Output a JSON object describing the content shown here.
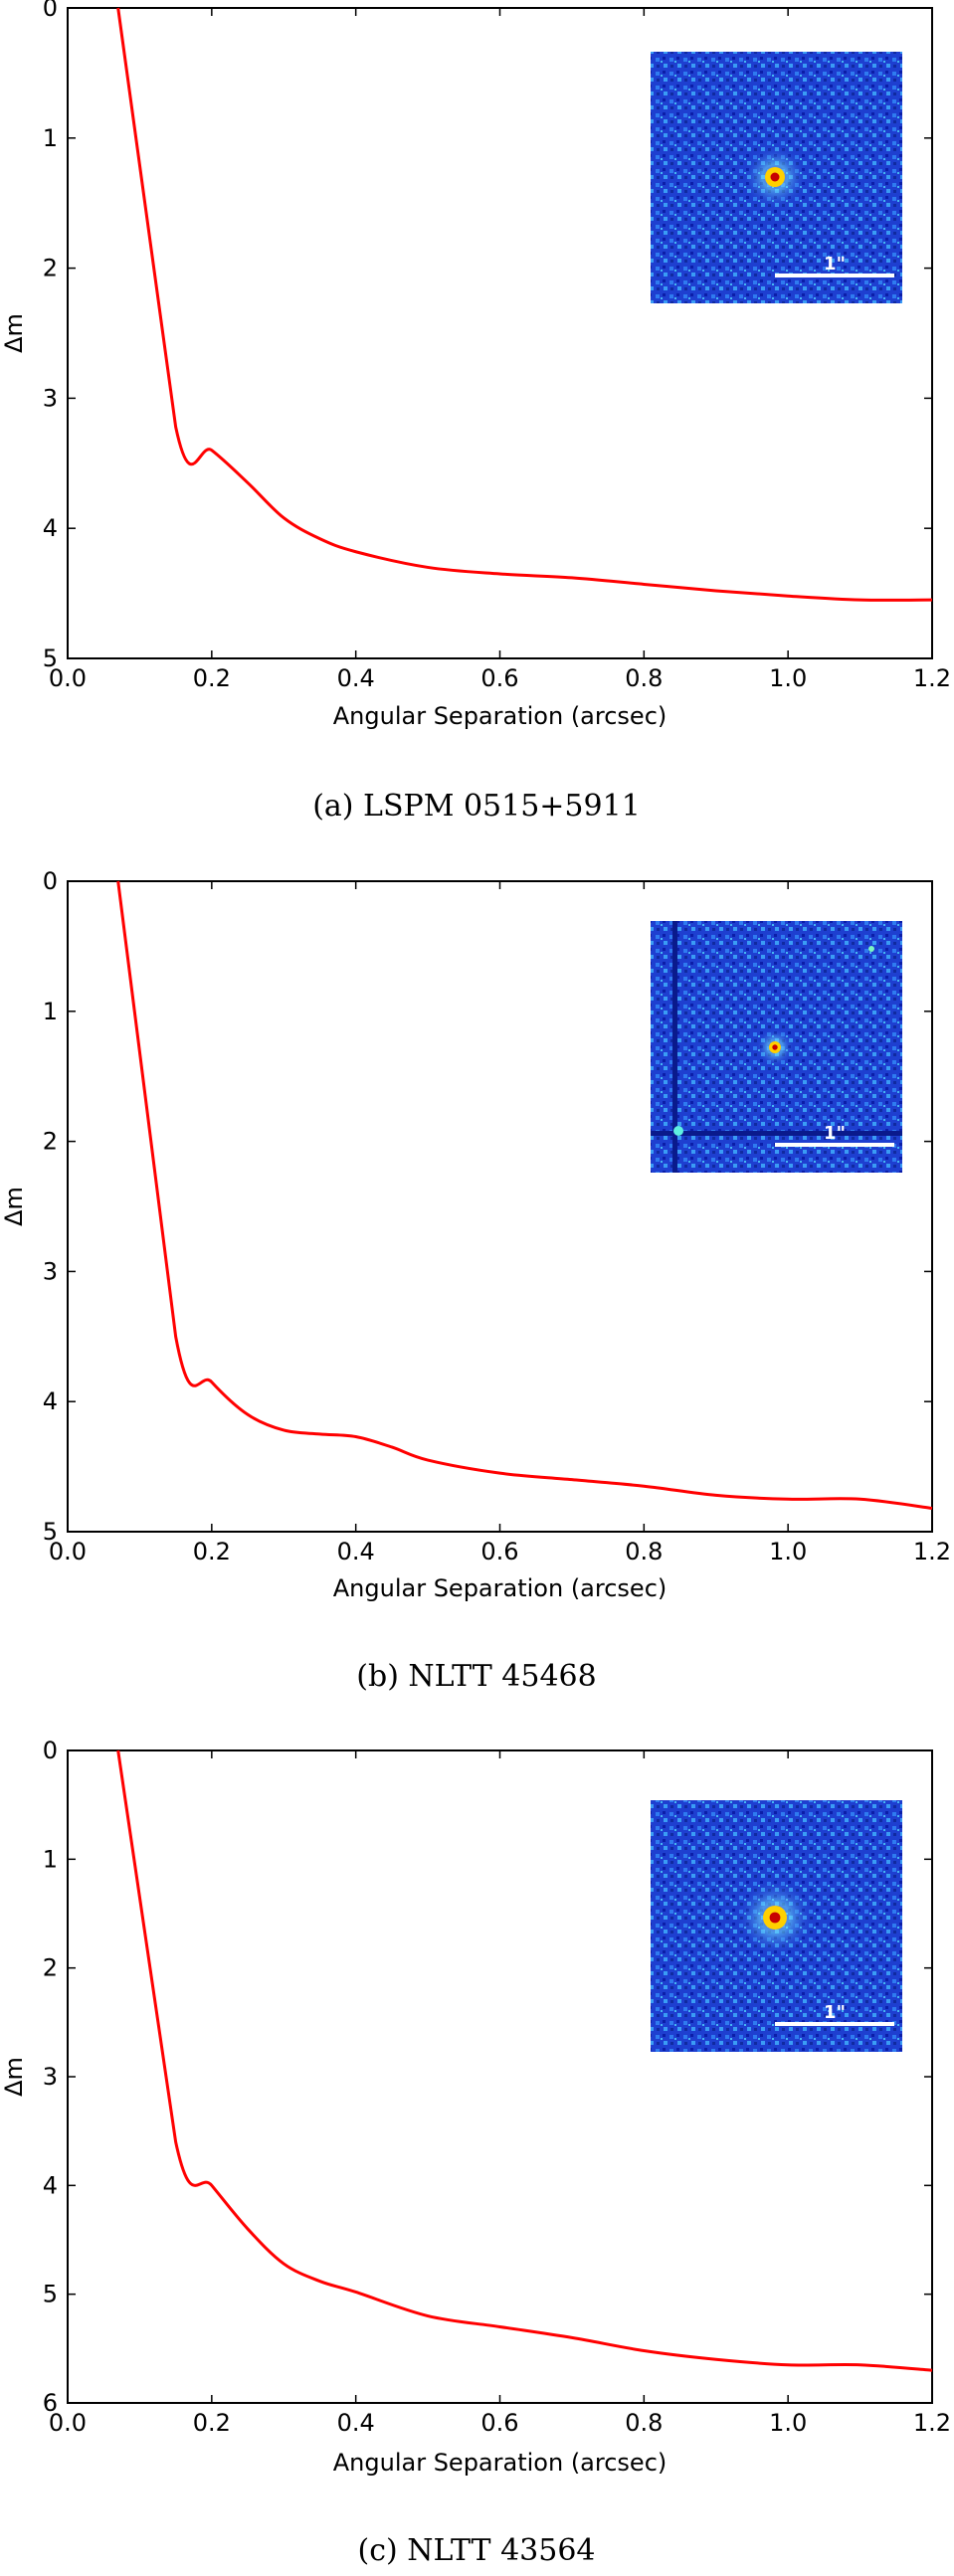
{
  "chart_data": [
    {
      "type": "line",
      "caption": "(a) LSPM 0515+5911",
      "xlabel": "Angular Separation (arcsec)",
      "ylabel": "Δm",
      "xlim": [
        0.0,
        1.2
      ],
      "ylim": [
        5,
        0
      ],
      "xticks": [
        "0.0",
        "0.2",
        "0.4",
        "0.6",
        "0.8",
        "1.0",
        "1.2"
      ],
      "yticks": [
        "0",
        "1",
        "2",
        "3",
        "4",
        "5"
      ],
      "inset_scale_label": "1\"",
      "color": "#ff0000",
      "x": [
        0.07,
        0.15,
        0.2,
        0.25,
        0.3,
        0.35,
        0.4,
        0.5,
        0.6,
        0.7,
        0.8,
        0.9,
        1.0,
        1.1,
        1.2
      ],
      "y": [
        0.0,
        3.22,
        3.4,
        3.65,
        3.92,
        4.08,
        4.18,
        4.3,
        4.35,
        4.38,
        4.43,
        4.48,
        4.52,
        4.55,
        4.55
      ]
    },
    {
      "type": "line",
      "caption": "(b) NLTT 45468",
      "xlabel": "Angular Separation (arcsec)",
      "ylabel": "Δm",
      "xlim": [
        0.0,
        1.2
      ],
      "ylim": [
        5,
        0
      ],
      "xticks": [
        "0.0",
        "0.2",
        "0.4",
        "0.6",
        "0.8",
        "1.0",
        "1.2"
      ],
      "yticks": [
        "0",
        "1",
        "2",
        "3",
        "4",
        "5"
      ],
      "inset_scale_label": "1\"",
      "color": "#ff0000",
      "x": [
        0.07,
        0.15,
        0.2,
        0.25,
        0.3,
        0.35,
        0.4,
        0.45,
        0.5,
        0.6,
        0.7,
        0.8,
        0.9,
        1.0,
        1.1,
        1.2
      ],
      "y": [
        0.0,
        3.5,
        3.85,
        4.1,
        4.22,
        4.25,
        4.27,
        4.35,
        4.45,
        4.55,
        4.6,
        4.65,
        4.72,
        4.75,
        4.75,
        4.82
      ]
    },
    {
      "type": "line",
      "caption": "(c) NLTT 43564",
      "xlabel": "Angular Separation (arcsec)",
      "ylabel": "Δm",
      "xlim": [
        0.0,
        1.2
      ],
      "ylim": [
        6,
        0
      ],
      "xticks": [
        "0.0",
        "0.2",
        "0.4",
        "0.6",
        "0.8",
        "1.0",
        "1.2"
      ],
      "yticks": [
        "0",
        "1",
        "2",
        "3",
        "4",
        "5",
        "6"
      ],
      "inset_scale_label": "1\"",
      "color": "#ff0000",
      "x": [
        0.07,
        0.15,
        0.2,
        0.25,
        0.3,
        0.35,
        0.4,
        0.5,
        0.6,
        0.7,
        0.8,
        0.9,
        1.0,
        1.1,
        1.2
      ],
      "y": [
        0.0,
        3.6,
        4.0,
        4.4,
        4.72,
        4.88,
        4.98,
        5.2,
        5.3,
        5.4,
        5.52,
        5.6,
        5.65,
        5.65,
        5.7
      ]
    }
  ]
}
